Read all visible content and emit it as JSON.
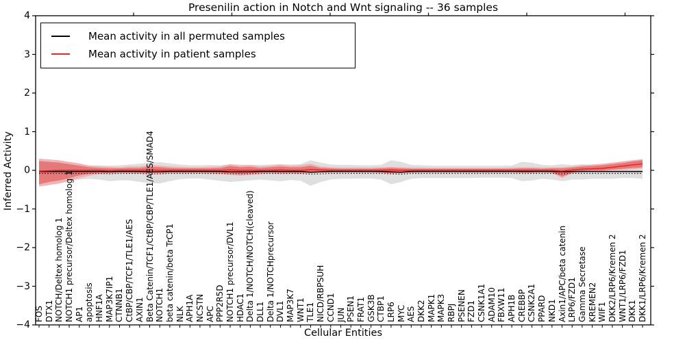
{
  "chart_data": {
    "type": "line",
    "title": "Presenilin action in Notch and Wnt signaling -- 36 samples",
    "xlabel": "Cellular Entities",
    "ylabel": "Inferred Activity",
    "ylim": [
      -4,
      4
    ],
    "ytick_labels": [
      "4",
      "3",
      "2",
      "1",
      "0",
      "−1",
      "−2",
      "−3",
      "−4"
    ],
    "grid": false,
    "legend_position": "upper left",
    "categories": [
      "FOS",
      "DTX1",
      "NOTCH/Deltex homolog 1",
      "NOTCH1 precursor/Deltex homolog 1",
      "AP1",
      "apoptosis",
      "HNF1A",
      "MAP3K7IP1",
      "CTNNB1",
      "CtBP/CBP/TCF1/TLE1/AES",
      "AXIN1",
      "Beta Catenin/TCF1/CtBP/CBP/TLE1/AES/SMAD4",
      "NOTCH1",
      "beta catenin/beta TrCP1",
      "NLK",
      "APH1A",
      "NCSTN",
      "APC",
      "PPP2R5D",
      "NOTCH1 precursor/DVL1",
      "HDAC1",
      "Delta 1/NOTCH/NOTCH(cleaved)",
      "DLL1",
      "Delta 1/NOTCHprecursor",
      "DVL1",
      "MAP3K7",
      "WNT1",
      "TLE1",
      "NICD/RBPSUH",
      "CCND1",
      "JUN",
      "PSEN1",
      "FRAT1",
      "GSK3B",
      "CTBP1",
      "LRP6",
      "MYC",
      "AES",
      "DKK2",
      "MAPK1",
      "MAPK3",
      "RBPJ",
      "PSENEN",
      "FZD1",
      "CSNK1A1",
      "ADAM10",
      "FBXW11",
      "APH1B",
      "CREBBP",
      "CSNK2A1",
      "PPARD",
      "NKD1",
      "Axin1/APC/beta catenin",
      "LRP6/FZD1",
      "Gamma Secretase",
      "KREMEN2",
      "WIF1",
      "DKK2/LRP6/Kremen 2",
      "WNT1/LRP6/FZD1",
      "DKK1",
      "DKK1/LRP6/Kremen 2"
    ],
    "series": [
      {
        "name": "Mean activity in all permuted samples",
        "color": "#000000",
        "values": [
          -0.03,
          -0.03,
          -0.03,
          -0.03,
          -0.03,
          -0.03,
          -0.03,
          -0.04,
          -0.03,
          -0.03,
          -0.03,
          -0.04,
          -0.04,
          -0.03,
          -0.03,
          -0.03,
          -0.03,
          -0.03,
          -0.03,
          -0.04,
          -0.04,
          -0.04,
          -0.03,
          -0.03,
          -0.03,
          -0.03,
          -0.03,
          -0.05,
          -0.04,
          -0.03,
          -0.03,
          -0.03,
          -0.03,
          -0.03,
          -0.03,
          -0.04,
          -0.05,
          -0.03,
          -0.03,
          -0.03,
          -0.03,
          -0.03,
          -0.03,
          -0.03,
          -0.03,
          -0.03,
          -0.03,
          -0.03,
          -0.03,
          -0.03,
          -0.03,
          -0.03,
          -0.04,
          -0.03,
          -0.03,
          -0.03,
          -0.03,
          -0.03,
          -0.03,
          -0.03,
          -0.03
        ]
      },
      {
        "name": "Mean activity in patient samples",
        "color": "#ee2222",
        "values": [
          -0.02,
          -0.01,
          0,
          0,
          0,
          0,
          0,
          -0.01,
          0,
          0,
          0,
          0.01,
          0,
          0,
          0,
          0,
          0,
          0,
          0,
          0.01,
          0,
          0,
          0,
          0,
          0.01,
          0,
          0,
          0.02,
          0.01,
          0,
          0,
          0,
          0,
          0,
          0,
          0.01,
          0,
          0,
          0,
          0,
          0,
          0,
          0,
          0,
          0,
          0,
          0,
          0,
          0,
          0,
          0,
          0,
          -0.02,
          0.01,
          0.03,
          0.04,
          0.05,
          0.08,
          0.11,
          0.14,
          0.17
        ]
      }
    ],
    "bands": [
      {
        "name": "permuted samples range",
        "color": "#dcdcdc",
        "upper": [
          0.2,
          0.2,
          0.18,
          0.16,
          0.15,
          0.13,
          0.13,
          0.12,
          0.13,
          0.15,
          0.17,
          0.2,
          0.21,
          0.18,
          0.15,
          0.13,
          0.13,
          0.14,
          0.13,
          0.16,
          0.15,
          0.14,
          0.14,
          0.15,
          0.16,
          0.15,
          0.16,
          0.26,
          0.2,
          0.15,
          0.14,
          0.14,
          0.13,
          0.13,
          0.14,
          0.26,
          0.22,
          0.14,
          0.13,
          0.12,
          0.12,
          0.12,
          0.12,
          0.12,
          0.12,
          0.12,
          0.12,
          0.12,
          0.22,
          0.2,
          0.14,
          0.13,
          0.16,
          0.14,
          0.16,
          0.14,
          0.13,
          0.15,
          0.12,
          0.1,
          0.08
        ],
        "lower": [
          -0.25,
          -0.26,
          -0.28,
          -0.26,
          -0.24,
          -0.22,
          -0.24,
          -0.28,
          -0.26,
          -0.26,
          -0.3,
          -0.33,
          -0.34,
          -0.28,
          -0.23,
          -0.21,
          -0.21,
          -0.24,
          -0.27,
          -0.3,
          -0.28,
          -0.26,
          -0.24,
          -0.26,
          -0.28,
          -0.25,
          -0.27,
          -0.4,
          -0.3,
          -0.24,
          -0.22,
          -0.22,
          -0.21,
          -0.21,
          -0.24,
          -0.36,
          -0.3,
          -0.22,
          -0.2,
          -0.2,
          -0.2,
          -0.2,
          -0.2,
          -0.2,
          -0.19,
          -0.19,
          -0.19,
          -0.2,
          -0.28,
          -0.26,
          -0.22,
          -0.24,
          -0.28,
          -0.24,
          -0.24,
          -0.22,
          -0.22,
          -0.22,
          -0.2,
          -0.2,
          -0.22
        ]
      },
      {
        "name": "patient samples range outer",
        "color": "#f2acac",
        "upper": [
          0.3,
          0.28,
          0.26,
          0.22,
          0.18,
          0.12,
          0.1,
          0.09,
          0.08,
          0.1,
          0.1,
          0.14,
          0.12,
          0.1,
          0.09,
          0.08,
          0.08,
          0.09,
          0.1,
          0.16,
          0.12,
          0.14,
          0.1,
          0.12,
          0.15,
          0.12,
          0.13,
          0.17,
          0.1,
          0.08,
          0.07,
          0.07,
          0.07,
          0.07,
          0.08,
          0.09,
          0.08,
          0.07,
          0.07,
          0.06,
          0.06,
          0.06,
          0.06,
          0.06,
          0.06,
          0.06,
          0.06,
          0.07,
          0.08,
          0.08,
          0.07,
          0.08,
          0.08,
          0.1,
          0.13,
          0.15,
          0.17,
          0.2,
          0.23,
          0.26,
          0.29
        ],
        "lower": [
          -0.42,
          -0.38,
          -0.34,
          -0.28,
          -0.2,
          -0.14,
          -0.1,
          -0.09,
          -0.08,
          -0.08,
          -0.09,
          -0.1,
          -0.1,
          -0.08,
          -0.08,
          -0.08,
          -0.08,
          -0.09,
          -0.1,
          -0.12,
          -0.14,
          -0.12,
          -0.1,
          -0.08,
          -0.1,
          -0.09,
          -0.1,
          -0.07,
          -0.06,
          -0.06,
          -0.06,
          -0.06,
          -0.06,
          -0.06,
          -0.07,
          -0.08,
          -0.08,
          -0.07,
          -0.06,
          -0.06,
          -0.06,
          -0.06,
          -0.06,
          -0.06,
          -0.06,
          -0.06,
          -0.06,
          -0.06,
          -0.07,
          -0.07,
          -0.06,
          -0.07,
          -0.2,
          -0.08,
          -0.05,
          -0.03,
          -0.02,
          0.0,
          0.01,
          0.03,
          0.05
        ]
      },
      {
        "name": "patient samples range inner",
        "color": "#e37272",
        "upper": [
          0.24,
          0.22,
          0.2,
          0.16,
          0.12,
          0.08,
          0.06,
          0.05,
          0.05,
          0.06,
          0.06,
          0.09,
          0.08,
          0.06,
          0.05,
          0.05,
          0.05,
          0.05,
          0.06,
          0.11,
          0.08,
          0.09,
          0.06,
          0.08,
          0.1,
          0.08,
          0.08,
          0.12,
          0.06,
          0.05,
          0.04,
          0.04,
          0.04,
          0.04,
          0.05,
          0.06,
          0.05,
          0.04,
          0.04,
          0.04,
          0.04,
          0.04,
          0.04,
          0.04,
          0.04,
          0.04,
          0.04,
          0.04,
          0.05,
          0.05,
          0.04,
          0.05,
          0.05,
          0.07,
          0.1,
          0.11,
          0.13,
          0.16,
          0.19,
          0.23,
          0.26
        ],
        "lower": [
          -0.36,
          -0.3,
          -0.26,
          -0.2,
          -0.13,
          -0.09,
          -0.06,
          -0.06,
          -0.05,
          -0.05,
          -0.06,
          -0.06,
          -0.06,
          -0.05,
          -0.05,
          -0.05,
          -0.05,
          -0.05,
          -0.06,
          -0.08,
          -0.1,
          -0.08,
          -0.06,
          -0.05,
          -0.06,
          -0.06,
          -0.06,
          -0.04,
          -0.04,
          -0.04,
          -0.04,
          -0.04,
          -0.04,
          -0.04,
          -0.05,
          -0.08,
          -0.06,
          -0.05,
          -0.04,
          -0.04,
          -0.04,
          -0.04,
          -0.04,
          -0.04,
          -0.04,
          -0.04,
          -0.04,
          -0.04,
          -0.05,
          -0.05,
          -0.04,
          -0.05,
          -0.16,
          -0.06,
          -0.02,
          0.0,
          0.0,
          0.02,
          0.04,
          0.06,
          0.08
        ]
      }
    ]
  }
}
